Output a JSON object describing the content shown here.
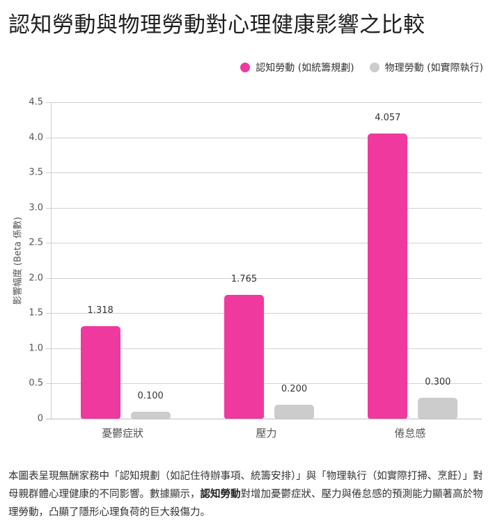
{
  "title": "認知勞動與物理勞動對心理健康影響之比較",
  "legend": [
    {
      "label": "認知勞動 (如統籌規劃)",
      "color": "#f0399e"
    },
    {
      "label": "物理勞動 (如實際執行)",
      "color": "#cccccc"
    }
  ],
  "caption": {
    "part1": "本圖表呈現無酬家務中「認知規劃（如記住待辦事項、統籌安排）」與「物理執行（如實際打掃、烹飪）」對母親群體心理健康的不同影響。數據顯示，",
    "bold": "認知勞動",
    "part2": "對增加憂鬱症狀、壓力與倦怠感的預測能力顯著高於物理勞動，凸顯了隱形心理負荷的巨大殺傷力。"
  },
  "chart_data": {
    "type": "bar",
    "title": "認知勞動與物理勞動對心理健康影響之比較",
    "categories": [
      "憂鬱症狀",
      "壓力",
      "倦怠感"
    ],
    "series": [
      {
        "name": "認知勞動 (如統籌規劃)",
        "color": "#f0399e",
        "values": [
          1.318,
          1.765,
          4.057
        ],
        "labels": [
          "1.318",
          "1.765",
          "4.057"
        ]
      },
      {
        "name": "物理勞動 (如實際執行)",
        "color": "#cccccc",
        "values": [
          0.1,
          0.2,
          0.3
        ],
        "labels": [
          "0.100",
          "0.200",
          "0.300"
        ]
      }
    ],
    "xlabel": "",
    "ylabel": "影響幅度 (Beta 係數)",
    "ylim": [
      0,
      4.5
    ],
    "yticks": [
      "0",
      "0.5",
      "1.0",
      "1.5",
      "2.0",
      "2.5",
      "3.0",
      "3.5",
      "4.0",
      "4.5"
    ],
    "grid": true,
    "legend_position": "top-right"
  }
}
